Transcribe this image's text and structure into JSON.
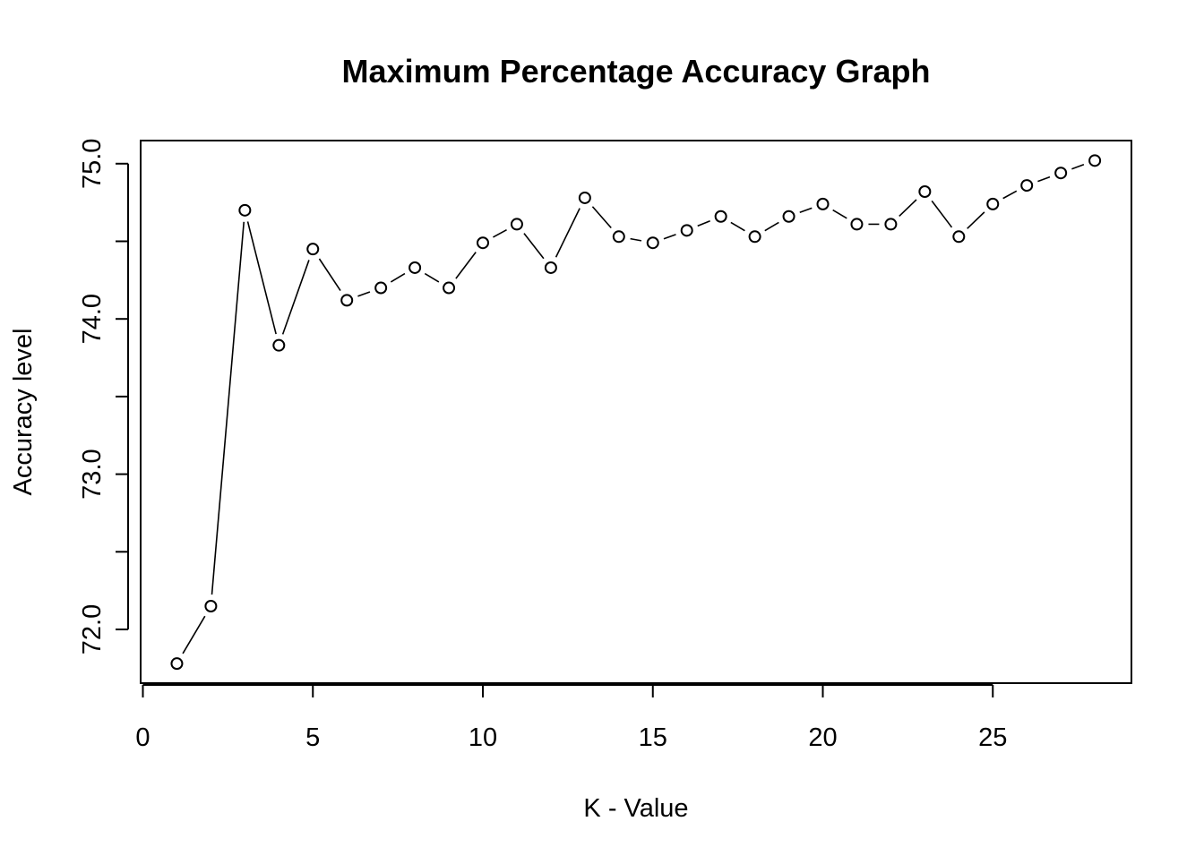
{
  "chart_data": {
    "type": "line",
    "title": "Maximum Percentage Accuracy Graph",
    "xlabel": "K - Value",
    "ylabel": "Accuracy level",
    "x": [
      1,
      2,
      3,
      4,
      5,
      6,
      7,
      8,
      9,
      10,
      11,
      12,
      13,
      14,
      15,
      16,
      17,
      18,
      19,
      20,
      21,
      22,
      23,
      24,
      25,
      26,
      27,
      28
    ],
    "series": [
      {
        "values": [
          71.78,
          72.15,
          74.7,
          73.83,
          74.45,
          74.12,
          74.2,
          74.33,
          74.2,
          74.49,
          74.61,
          74.33,
          74.78,
          74.53,
          74.49,
          74.57,
          74.66,
          74.53,
          74.66,
          74.74,
          74.61,
          74.61,
          74.82,
          74.53,
          74.74,
          74.86,
          74.94,
          75.02
        ]
      }
    ],
    "xlim": [
      0,
      28.5
    ],
    "ylim": [
      71.7,
      75.1
    ],
    "xticks": [
      "0",
      "5",
      "10",
      "15",
      "20",
      "25"
    ],
    "yticks": [
      "72.0",
      "72.5",
      "73.0",
      "73.5",
      "74.0",
      "74.5",
      "75.0"
    ],
    "yticks_labeled": [
      "72.0",
      "73.0",
      "74.0",
      "75.0"
    ],
    "marker": "open-circle",
    "line_style": "solid, gaps around points",
    "grid": false,
    "legend": "none"
  }
}
